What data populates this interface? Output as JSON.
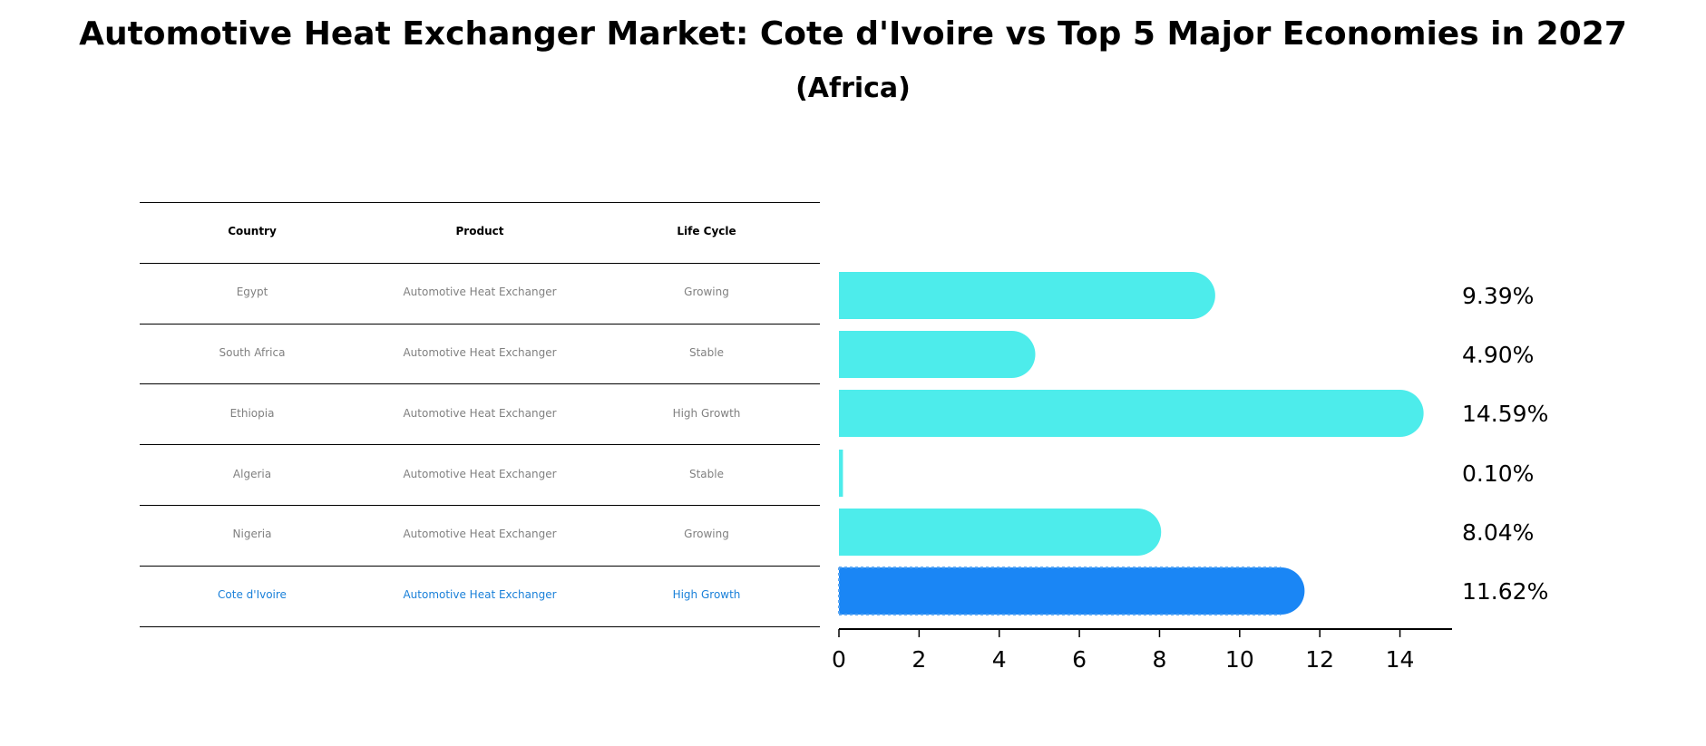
{
  "title": "Automotive Heat Exchanger Market: Cote d'Ivoire vs Top 5 Major Economies in 2027",
  "subtitle": "(Africa)",
  "table": {
    "headers": [
      "Country",
      "Product",
      "Life Cycle"
    ],
    "rows": [
      [
        "Egypt",
        "Automotive Heat Exchanger",
        "Growing"
      ],
      [
        "South Africa",
        "Automotive Heat Exchanger",
        "Stable"
      ],
      [
        "Ethiopia",
        "Automotive Heat Exchanger",
        "High Growth"
      ],
      [
        "Algeria",
        "Automotive Heat Exchanger",
        "Stable"
      ],
      [
        "Nigeria",
        "Automotive Heat Exchanger",
        "Growing"
      ],
      [
        "Cote d'Ivoire",
        "Automotive Heat Exchanger",
        "High Growth"
      ]
    ],
    "highlight_row": 5
  },
  "colors": {
    "bar": "#4deceb",
    "highlight_bar": "#1a86f5",
    "table_text": "#808080",
    "highlight_text": "#1a80d9"
  },
  "chart_data": {
    "type": "bar",
    "orientation": "horizontal",
    "categories": [
      "Egypt",
      "South Africa",
      "Ethiopia",
      "Algeria",
      "Nigeria",
      "Cote d'Ivoire"
    ],
    "values": [
      9.39,
      4.9,
      14.59,
      0.1,
      8.04,
      11.62
    ],
    "value_labels": [
      "9.39%",
      "4.90%",
      "14.59%",
      "0.10%",
      "8.04%",
      "11.62%"
    ],
    "highlight_index": 5,
    "xlim": [
      0,
      15.3
    ],
    "xticks": [
      0,
      2,
      4,
      6,
      8,
      10,
      12,
      14
    ],
    "xlabel": "",
    "ylabel": "",
    "grid": false
  }
}
